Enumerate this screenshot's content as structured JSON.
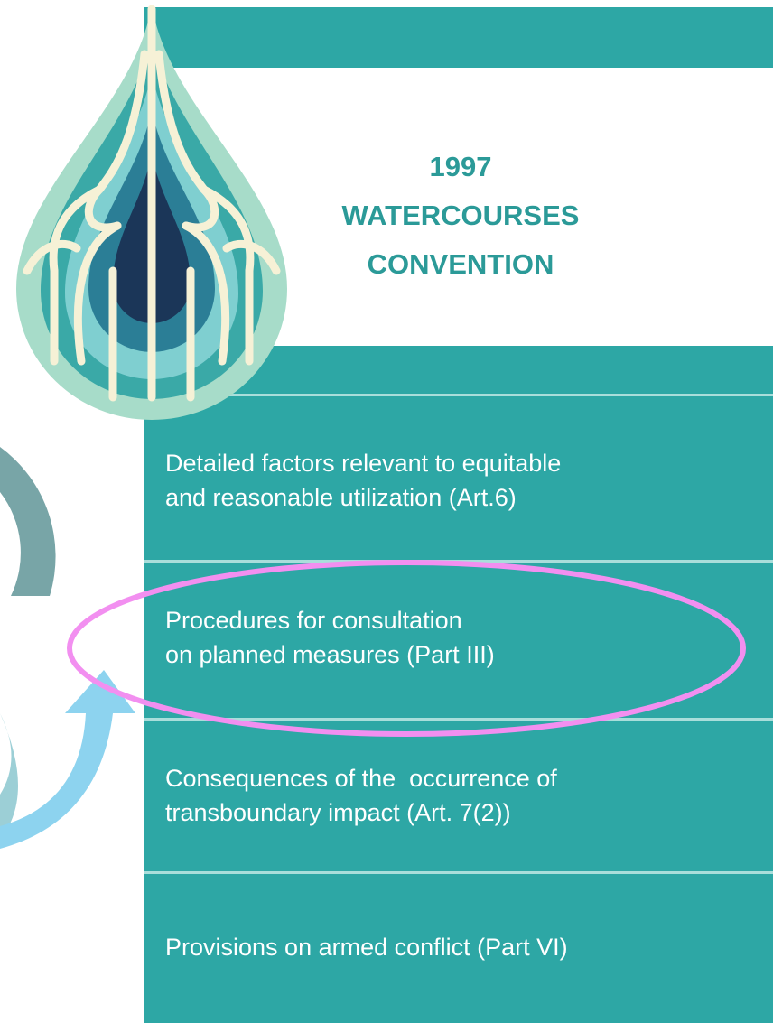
{
  "header": {
    "title_lines": [
      "1997",
      "WATERCOURSES",
      "CONVENTION"
    ]
  },
  "items": [
    {
      "lines": [
        "Detailed factors relevant to equitable",
        "and reasonable utilization (Art.6)"
      ]
    },
    {
      "lines": [
        "Procedures for consultation",
        "on planned measures (Part III)"
      ]
    },
    {
      "lines": [
        "Consequences of the  occurrence of",
        "transboundary impact (Art. 7(2))"
      ]
    },
    {
      "lines": [
        "Provisions on armed conflict (Part VI)"
      ]
    }
  ]
}
